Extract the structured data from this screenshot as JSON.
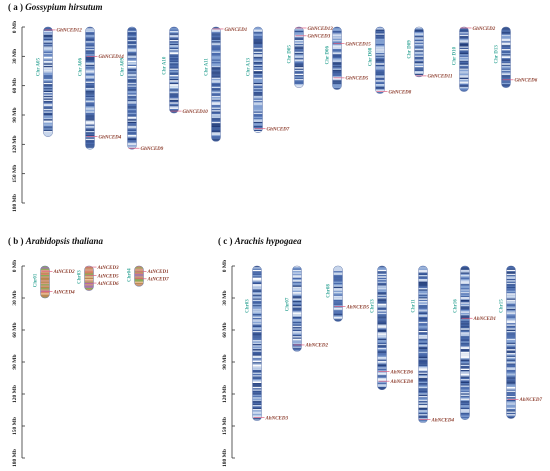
{
  "panels": {
    "a": {
      "letter": "( a )",
      "species": "Gossypium hirsutum",
      "axis_ticks": [
        "0 Mb",
        "30 Mb",
        "60 Mb",
        "90 Mb",
        "120 Mb",
        "150 Mb",
        "180 Mb"
      ],
      "chromosomes": [
        {
          "name": "Chr A05",
          "length_mb": 112,
          "genes": [
            {
              "name": "GhNCED12",
              "pos_mb": 3
            }
          ]
        },
        {
          "name": "Chr A06",
          "length_mb": 125,
          "genes": [
            {
              "name": "GhNCED14",
              "pos_mb": 30
            },
            {
              "name": "GhNCED4",
              "pos_mb": 112
            }
          ]
        },
        {
          "name": "Chr A09",
          "length_mb": 125,
          "genes": [
            {
              "name": "GhNCED9",
              "pos_mb": 124
            }
          ]
        },
        {
          "name": "Chr A10",
          "length_mb": 88,
          "genes": [
            {
              "name": "GhNCED10",
              "pos_mb": 86
            }
          ]
        },
        {
          "name": "Chr A11",
          "length_mb": 117,
          "genes": [
            {
              "name": "GhNCED1",
              "pos_mb": 2
            }
          ]
        },
        {
          "name": "Chr A13",
          "length_mb": 108,
          "genes": [
            {
              "name": "GhNCED7",
              "pos_mb": 104
            }
          ]
        },
        {
          "name": "Chr D05",
          "length_mb": 62,
          "genes": [
            {
              "name": "GhNCED13",
              "pos_mb": 1
            },
            {
              "name": "GhNCED3",
              "pos_mb": 9
            }
          ]
        },
        {
          "name": "Chr D06",
          "length_mb": 64,
          "genes": [
            {
              "name": "GhNCED15",
              "pos_mb": 17
            },
            {
              "name": "GhNCED5",
              "pos_mb": 52
            }
          ]
        },
        {
          "name": "Chr D08",
          "length_mb": 68,
          "genes": [
            {
              "name": "GhNCED8",
              "pos_mb": 66
            }
          ]
        },
        {
          "name": "Chr D09",
          "length_mb": 51,
          "genes": [
            {
              "name": "GhNCED11",
              "pos_mb": 50
            }
          ]
        },
        {
          "name": "Chr D10",
          "length_mb": 66,
          "genes": [
            {
              "name": "GhNCED2",
              "pos_mb": 1
            }
          ]
        },
        {
          "name": "Chr D13",
          "length_mb": 62,
          "genes": [
            {
              "name": "GhNCED6",
              "pos_mb": 54
            }
          ]
        }
      ]
    },
    "b": {
      "letter": "( b )",
      "species": "Arabidopsis thaliana",
      "axis_ticks": [
        "0 Mb",
        "30 Mb",
        "60 Mb",
        "90 Mb",
        "120 Mb",
        "150 Mb",
        "180 Mb"
      ],
      "chromosomes": [
        {
          "name": "Chr01",
          "length_mb": 30,
          "genes": [
            {
              "name": "AtNCED2",
              "pos_mb": 5
            },
            {
              "name": "AtNCED4",
              "pos_mb": 24
            }
          ]
        },
        {
          "name": "Chr03",
          "length_mb": 23,
          "genes": [
            {
              "name": "AtNCED3",
              "pos_mb": 1
            },
            {
              "name": "AtNCED5",
              "pos_mb": 9
            },
            {
              "name": "AtNCED6",
              "pos_mb": 16
            }
          ]
        },
        {
          "name": "Chr04",
          "length_mb": 19,
          "genes": [
            {
              "name": "AtNCED1",
              "pos_mb": 5
            },
            {
              "name": "AtNCED7",
              "pos_mb": 12
            }
          ]
        }
      ]
    },
    "c": {
      "letter": "( c )",
      "species": "Arachis hypogaea",
      "axis_ticks": [
        "0 Mb",
        "30 Mb",
        "60 Mb",
        "90 Mb",
        "120 Mb",
        "150 Mb",
        "180 Mb"
      ],
      "chromosomes": [
        {
          "name": "Chr03",
          "length_mb": 145,
          "genes": [
            {
              "name": "AhNCED3",
              "pos_mb": 142
            }
          ]
        },
        {
          "name": "Chr07",
          "length_mb": 80,
          "genes": [
            {
              "name": "AhNCED2",
              "pos_mb": 74
            }
          ]
        },
        {
          "name": "Chr08",
          "length_mb": 52,
          "genes": [
            {
              "name": "AhNCED5",
              "pos_mb": 38
            }
          ]
        },
        {
          "name": "Chr13",
          "length_mb": 116,
          "genes": [
            {
              "name": "AhNCED6",
              "pos_mb": 99
            },
            {
              "name": "AhNCED8",
              "pos_mb": 108
            }
          ]
        },
        {
          "name": "Chr11",
          "length_mb": 147,
          "genes": [
            {
              "name": "AhNCED4",
              "pos_mb": 144
            }
          ]
        },
        {
          "name": "Chr16",
          "length_mb": 144,
          "genes": [
            {
              "name": "AhNCED1",
              "pos_mb": 49
            }
          ]
        },
        {
          "name": "Chr15",
          "length_mb": 143,
          "genes": [
            {
              "name": "AhNCED7",
              "pos_mb": 125
            }
          ]
        }
      ]
    }
  },
  "colors": {
    "chrom_dark": "#2f4d8f",
    "chrom_mid": "#6f8fc6",
    "chrom_light": "#dbe6f5",
    "chrom_name": "#3aa89a",
    "gene_label": "#8b3a2a",
    "gene_line": "#e06080",
    "axis": "#333333"
  }
}
